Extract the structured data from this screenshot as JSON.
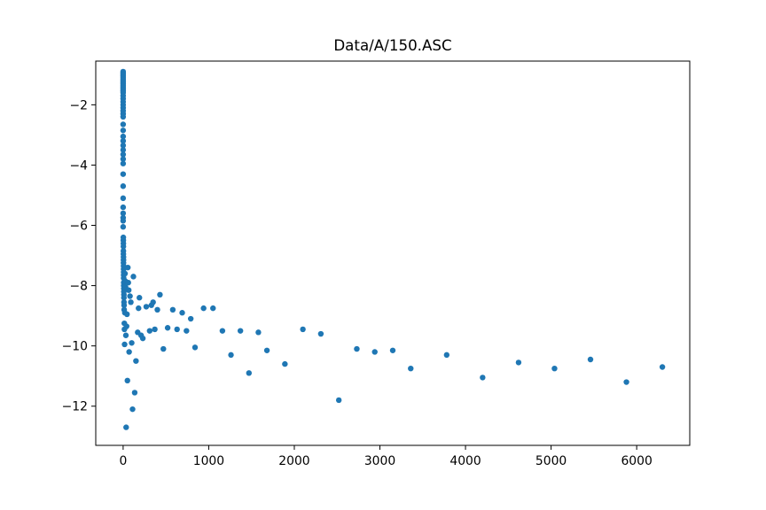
{
  "chart_data": {
    "type": "scatter",
    "title": "Data/A/150.ASC",
    "xlabel": "",
    "ylabel": "",
    "xlim": [
      -320,
      6620
    ],
    "ylim": [
      -13.3,
      -0.55
    ],
    "xticks": [
      0,
      1000,
      2000,
      3000,
      4000,
      5000,
      6000
    ],
    "xtick_labels": [
      "0",
      "1000",
      "2000",
      "3000",
      "4000",
      "5000",
      "6000"
    ],
    "yticks": [
      -2,
      -4,
      -6,
      -8,
      -10,
      -12
    ],
    "ytick_labels": [
      "−2",
      "−4",
      "−6",
      "−8",
      "−10",
      "−12"
    ],
    "grid": false,
    "legend": "none",
    "color": "#1f77b4",
    "series": [
      {
        "points": [
          [
            0,
            -0.9
          ],
          [
            0,
            -0.95
          ],
          [
            0,
            -1.0
          ],
          [
            0,
            -1.05
          ],
          [
            0,
            -1.1
          ],
          [
            0,
            -1.15
          ],
          [
            0,
            -1.2
          ],
          [
            0,
            -1.25
          ],
          [
            0,
            -1.3
          ],
          [
            0,
            -1.35
          ],
          [
            0,
            -1.4
          ],
          [
            0,
            -1.45
          ],
          [
            0,
            -1.5
          ],
          [
            0,
            -1.55
          ],
          [
            0,
            -1.6
          ],
          [
            0,
            -1.7
          ],
          [
            0,
            -1.8
          ],
          [
            0,
            -1.9
          ],
          [
            0,
            -2.0
          ],
          [
            0,
            -2.1
          ],
          [
            0,
            -2.2
          ],
          [
            0,
            -2.3
          ],
          [
            0,
            -2.4
          ],
          [
            0,
            -2.65
          ],
          [
            0,
            -2.85
          ],
          [
            0,
            -3.05
          ],
          [
            0,
            -3.2
          ],
          [
            0,
            -3.35
          ],
          [
            0,
            -3.5
          ],
          [
            0,
            -3.65
          ],
          [
            0,
            -3.8
          ],
          [
            0,
            -3.95
          ],
          [
            0,
            -4.3
          ],
          [
            0,
            -4.7
          ],
          [
            0,
            -5.1
          ],
          [
            0,
            -5.4
          ],
          [
            0,
            -5.6
          ],
          [
            0,
            -5.75
          ],
          [
            0,
            -5.85
          ],
          [
            0,
            -6.05
          ],
          [
            2,
            -6.4
          ],
          [
            2,
            -6.5
          ],
          [
            3,
            -6.6
          ],
          [
            3,
            -6.7
          ],
          [
            3,
            -6.85
          ],
          [
            3,
            -6.95
          ],
          [
            4,
            -7.05
          ],
          [
            4,
            -7.15
          ],
          [
            4,
            -7.25
          ],
          [
            5,
            -7.35
          ],
          [
            5,
            -7.45
          ],
          [
            6,
            -7.55
          ],
          [
            6,
            -7.65
          ],
          [
            6,
            -7.75
          ],
          [
            7,
            -7.9
          ],
          [
            7,
            -8.0
          ],
          [
            8,
            -8.1
          ],
          [
            8,
            -8.2
          ],
          [
            9,
            -8.3
          ],
          [
            9,
            -8.4
          ],
          [
            10,
            -8.55
          ],
          [
            11,
            -8.65
          ],
          [
            12,
            -8.8
          ],
          [
            14,
            -9.25
          ],
          [
            15,
            -9.45
          ],
          [
            17,
            -9.95
          ],
          [
            20,
            -8.9
          ],
          [
            22,
            -7.6
          ],
          [
            25,
            -7.85
          ],
          [
            28,
            -8.05
          ],
          [
            32,
            -9.65
          ],
          [
            35,
            -12.7
          ],
          [
            40,
            -9.35
          ],
          [
            45,
            -8.95
          ],
          [
            50,
            -11.15
          ],
          [
            55,
            -7.4
          ],
          [
            60,
            -7.9
          ],
          [
            65,
            -8.15
          ],
          [
            70,
            -10.2
          ],
          [
            80,
            -8.35
          ],
          [
            90,
            -8.55
          ],
          [
            100,
            -9.9
          ],
          [
            110,
            -12.1
          ],
          [
            120,
            -7.7
          ],
          [
            135,
            -11.55
          ],
          [
            150,
            -10.5
          ],
          [
            170,
            -9.55
          ],
          [
            180,
            -8.75
          ],
          [
            190,
            -8.4
          ],
          [
            210,
            -9.65
          ],
          [
            230,
            -9.75
          ],
          [
            270,
            -8.7
          ],
          [
            310,
            -9.5
          ],
          [
            330,
            -8.65
          ],
          [
            350,
            -8.55
          ],
          [
            370,
            -9.45
          ],
          [
            400,
            -8.8
          ],
          [
            430,
            -8.3
          ],
          [
            470,
            -10.1
          ],
          [
            520,
            -9.4
          ],
          [
            580,
            -8.8
          ],
          [
            630,
            -9.45
          ],
          [
            690,
            -8.9
          ],
          [
            740,
            -9.5
          ],
          [
            790,
            -9.1
          ],
          [
            840,
            -10.05
          ],
          [
            940,
            -8.75
          ],
          [
            1050,
            -8.75
          ],
          [
            1160,
            -9.5
          ],
          [
            1260,
            -10.3
          ],
          [
            1370,
            -9.5
          ],
          [
            1470,
            -10.9
          ],
          [
            1580,
            -9.55
          ],
          [
            1680,
            -10.15
          ],
          [
            1890,
            -10.6
          ],
          [
            2100,
            -9.45
          ],
          [
            2310,
            -9.6
          ],
          [
            2520,
            -11.8
          ],
          [
            2730,
            -10.1
          ],
          [
            2940,
            -10.2
          ],
          [
            3150,
            -10.15
          ],
          [
            3360,
            -10.75
          ],
          [
            3780,
            -10.3
          ],
          [
            4200,
            -11.05
          ],
          [
            4620,
            -10.55
          ],
          [
            5040,
            -10.75
          ],
          [
            5460,
            -10.45
          ],
          [
            5880,
            -11.2
          ],
          [
            6300,
            -10.7
          ]
        ]
      }
    ]
  }
}
